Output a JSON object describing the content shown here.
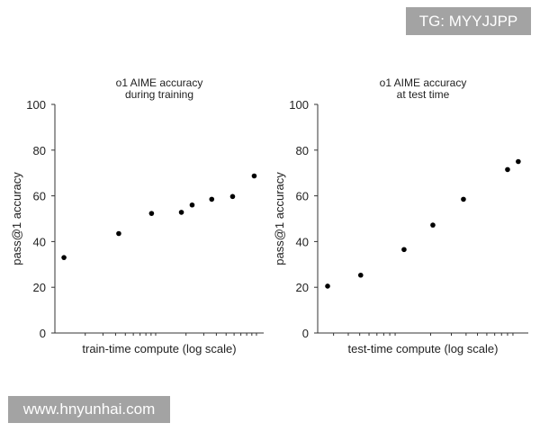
{
  "watermarks": {
    "top_right": "TG: MYYJJPP",
    "bottom_left": "www.hnyunhai.com"
  },
  "chart_data": [
    {
      "type": "scatter",
      "title": [
        "o1 AIME accuracy",
        "during training"
      ],
      "xlabel": "train-time compute (log scale)",
      "ylabel": "pass@1 accuracy",
      "xscale": "log",
      "xlim": [
        1,
        118
      ],
      "ylim": [
        0,
        100
      ],
      "yticks": [
        "0",
        "20",
        "40",
        "60",
        "80",
        "100"
      ],
      "grid": false,
      "x": [
        1.23,
        4.3,
        9.1,
        18,
        23,
        36,
        58,
        95
      ],
      "y": [
        33,
        43.5,
        52.3,
        52.8,
        56,
        58.5,
        59.7,
        68.7
      ]
    },
    {
      "type": "scatter",
      "title": [
        "o1 AIME accuracy",
        "at test time"
      ],
      "xlabel": "test-time compute (log scale)",
      "ylabel": "pass@1 accuracy",
      "xscale": "log",
      "xlim": [
        2.2,
        135
      ],
      "ylim": [
        0,
        100
      ],
      "yticks": [
        "0",
        "20",
        "40",
        "60",
        "80",
        "100"
      ],
      "grid": false,
      "x": [
        2.67,
        5.1,
        11.9,
        20.9,
        38,
        90,
        111
      ],
      "y": [
        20.5,
        25.3,
        36.5,
        47.2,
        58.5,
        71.5,
        75
      ]
    }
  ]
}
